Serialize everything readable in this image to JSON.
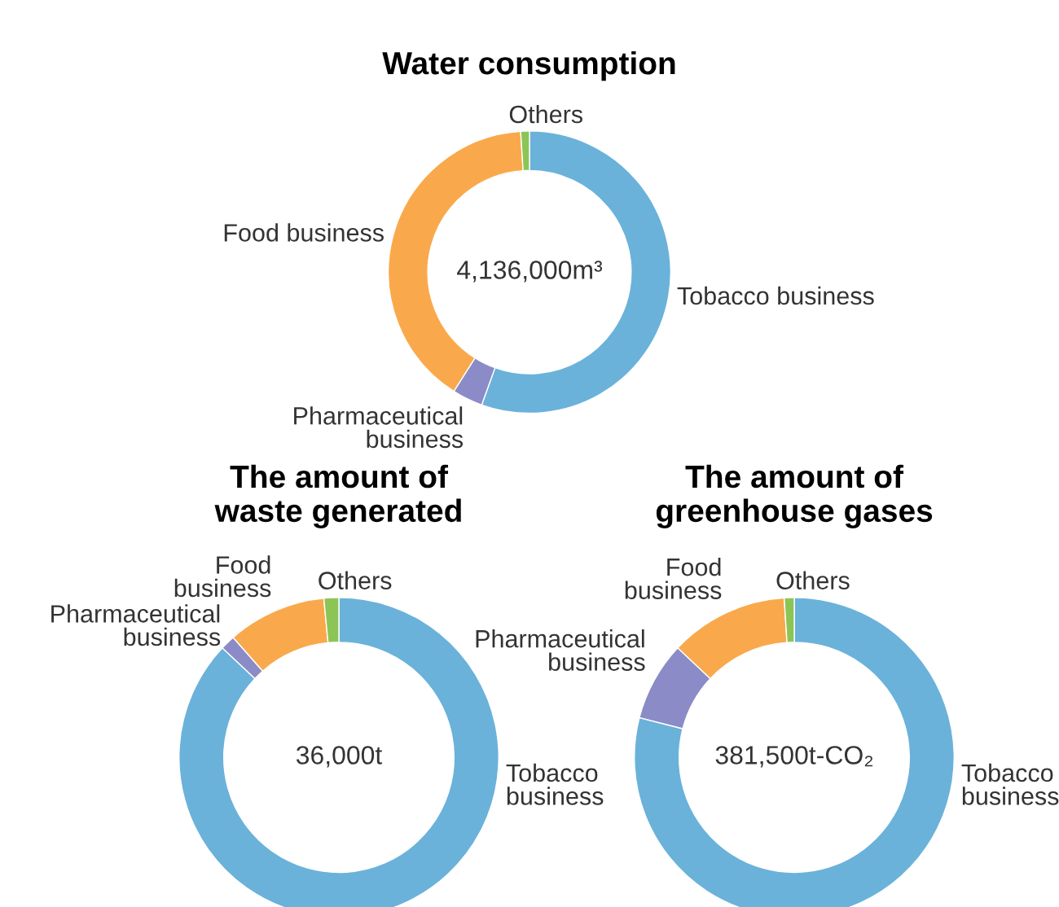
{
  "chart_data": [
    {
      "type": "donut",
      "title": "Water consumption",
      "categories": [
        "Tobacco business",
        "Pharmaceutical\nbusiness",
        "Food business",
        "Others"
      ],
      "values": [
        55.5,
        3.5,
        40,
        1
      ],
      "colors": [
        "#6ab2da",
        "#8b8bc7",
        "#f9a94b",
        "#8cc556"
      ],
      "annotations": [
        "4,136,000m³"
      ]
    },
    {
      "type": "donut",
      "title": "The amount of\nwaste generated",
      "categories": [
        "Tobacco\nbusiness",
        "Pharmaceutical\nbusiness",
        "Food\nbusiness",
        "Others"
      ],
      "values": [
        87,
        1.5,
        10,
        1.5
      ],
      "colors": [
        "#6ab2da",
        "#8b8bc7",
        "#f9a94b",
        "#8cc556"
      ],
      "annotations": [
        "36,000t"
      ]
    },
    {
      "type": "donut",
      "title": "The amount of\ngreenhouse gases",
      "categories": [
        "Tobacco\nbusiness",
        "Pharmaceutical\nbusiness",
        "Food\nbusiness",
        "Others"
      ],
      "values": [
        79,
        8,
        12,
        1
      ],
      "colors": [
        "#6ab2da",
        "#8b8bc7",
        "#f9a94b",
        "#8cc556"
      ],
      "annotations": [
        "381,500t-CO₂"
      ]
    }
  ]
}
